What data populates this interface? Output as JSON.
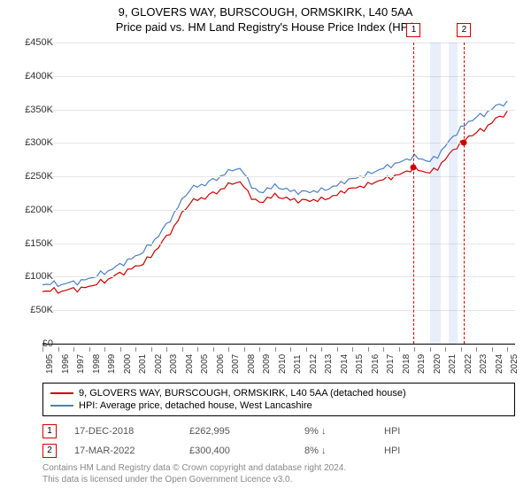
{
  "title": "9, GLOVERS WAY, BURSCOUGH, ORMSKIRK, L40 5AA",
  "subtitle": "Price paid vs. HM Land Registry's House Price Index (HPI)",
  "chart": {
    "type": "line",
    "x_start_year": 1995,
    "x_end_year": 2025.5,
    "years_ticks": [
      1995,
      1996,
      1997,
      1998,
      1999,
      2000,
      2001,
      2002,
      2003,
      2004,
      2005,
      2006,
      2007,
      2008,
      2009,
      2010,
      2011,
      2012,
      2013,
      2014,
      2015,
      2016,
      2017,
      2018,
      2019,
      2020,
      2021,
      2022,
      2023,
      2024,
      2025
    ],
    "ylim": [
      0,
      450000
    ],
    "ytick_step": 50000,
    "yticks": [
      "£0",
      "£50K",
      "£100K",
      "£150K",
      "£200K",
      "£250K",
      "£300K",
      "£350K",
      "£400K",
      "£450K"
    ],
    "background_color": "#ffffff",
    "grid_color": "#e6e6e6",
    "series": [
      {
        "name": "9, GLOVERS WAY, BURSCOUGH, ORMSKIRK, L40 5AA (detached house)",
        "color": "#cc0000",
        "width": 1.2,
        "points": [
          [
            1995.0,
            78000
          ],
          [
            1995.5,
            80000
          ],
          [
            1996.0,
            77000
          ],
          [
            1996.5,
            80000
          ],
          [
            1997.0,
            82000
          ],
          [
            1997.5,
            83000
          ],
          [
            1998.0,
            85000
          ],
          [
            1998.5,
            90000
          ],
          [
            1999.0,
            92000
          ],
          [
            1999.5,
            100000
          ],
          [
            2000.0,
            105000
          ],
          [
            2000.5,
            110000
          ],
          [
            2001.0,
            115000
          ],
          [
            2001.5,
            120000
          ],
          [
            2002.0,
            130000
          ],
          [
            2002.5,
            145000
          ],
          [
            2003.0,
            160000
          ],
          [
            2003.5,
            175000
          ],
          [
            2004.0,
            195000
          ],
          [
            2004.5,
            210000
          ],
          [
            2005.0,
            215000
          ],
          [
            2005.5,
            218000
          ],
          [
            2006.0,
            225000
          ],
          [
            2006.5,
            230000
          ],
          [
            2007.0,
            238000
          ],
          [
            2007.5,
            242000
          ],
          [
            2008.0,
            235000
          ],
          [
            2008.5,
            218000
          ],
          [
            2009.0,
            210000
          ],
          [
            2009.5,
            218000
          ],
          [
            2010.0,
            222000
          ],
          [
            2010.5,
            218000
          ],
          [
            2011.0,
            215000
          ],
          [
            2011.5,
            213000
          ],
          [
            2012.0,
            214000
          ],
          [
            2012.5,
            215000
          ],
          [
            2013.0,
            216000
          ],
          [
            2013.5,
            218000
          ],
          [
            2014.0,
            222000
          ],
          [
            2014.5,
            228000
          ],
          [
            2015.0,
            232000
          ],
          [
            2015.5,
            235000
          ],
          [
            2016.0,
            238000
          ],
          [
            2016.5,
            242000
          ],
          [
            2017.0,
            245000
          ],
          [
            2017.5,
            248000
          ],
          [
            2018.0,
            252000
          ],
          [
            2018.5,
            258000
          ],
          [
            2019.0,
            263000
          ],
          [
            2019.5,
            258000
          ],
          [
            2020.0,
            255000
          ],
          [
            2020.5,
            262000
          ],
          [
            2021.0,
            275000
          ],
          [
            2021.5,
            290000
          ],
          [
            2022.0,
            300000
          ],
          [
            2022.5,
            310000
          ],
          [
            2023.0,
            315000
          ],
          [
            2023.5,
            320000
          ],
          [
            2024.0,
            330000
          ],
          [
            2024.5,
            340000
          ],
          [
            2025.0,
            345000
          ]
        ]
      },
      {
        "name": "HPI: Average price, detached house, West Lancashire",
        "color": "#4a7fc3",
        "width": 1.2,
        "points": [
          [
            1995.0,
            88000
          ],
          [
            1995.5,
            90000
          ],
          [
            1996.0,
            87000
          ],
          [
            1996.5,
            90000
          ],
          [
            1997.0,
            92000
          ],
          [
            1997.5,
            94000
          ],
          [
            1998.0,
            97000
          ],
          [
            1998.5,
            102000
          ],
          [
            1999.0,
            105000
          ],
          [
            1999.5,
            112000
          ],
          [
            2000.0,
            118000
          ],
          [
            2000.5,
            125000
          ],
          [
            2001.0,
            130000
          ],
          [
            2001.5,
            138000
          ],
          [
            2002.0,
            148000
          ],
          [
            2002.5,
            162000
          ],
          [
            2003.0,
            178000
          ],
          [
            2003.5,
            195000
          ],
          [
            2004.0,
            215000
          ],
          [
            2004.5,
            230000
          ],
          [
            2005.0,
            235000
          ],
          [
            2005.5,
            238000
          ],
          [
            2006.0,
            245000
          ],
          [
            2006.5,
            250000
          ],
          [
            2007.0,
            258000
          ],
          [
            2007.5,
            262000
          ],
          [
            2008.0,
            255000
          ],
          [
            2008.5,
            235000
          ],
          [
            2009.0,
            225000
          ],
          [
            2009.5,
            232000
          ],
          [
            2010.0,
            236000
          ],
          [
            2010.5,
            232000
          ],
          [
            2011.0,
            228000
          ],
          [
            2011.5,
            226000
          ],
          [
            2012.0,
            227000
          ],
          [
            2012.5,
            228000
          ],
          [
            2013.0,
            230000
          ],
          [
            2013.5,
            232000
          ],
          [
            2014.0,
            236000
          ],
          [
            2014.5,
            242000
          ],
          [
            2015.0,
            246000
          ],
          [
            2015.5,
            250000
          ],
          [
            2016.0,
            254000
          ],
          [
            2016.5,
            258000
          ],
          [
            2017.0,
            262000
          ],
          [
            2017.5,
            266000
          ],
          [
            2018.0,
            270000
          ],
          [
            2018.5,
            276000
          ],
          [
            2019.0,
            280000
          ],
          [
            2019.5,
            276000
          ],
          [
            2020.0,
            272000
          ],
          [
            2020.5,
            280000
          ],
          [
            2021.0,
            295000
          ],
          [
            2021.5,
            310000
          ],
          [
            2022.0,
            322000
          ],
          [
            2022.5,
            332000
          ],
          [
            2023.0,
            338000
          ],
          [
            2023.5,
            342000
          ],
          [
            2024.0,
            350000
          ],
          [
            2024.5,
            358000
          ],
          [
            2025.0,
            360000
          ]
        ]
      }
    ],
    "vbands": [
      {
        "from": 2020.0,
        "to": 2020.7,
        "color": "rgba(100,150,220,0.15)"
      },
      {
        "from": 2021.2,
        "to": 2021.8,
        "color": "rgba(100,150,220,0.15)"
      }
    ],
    "markers": [
      {
        "label": "1",
        "x": 2018.96,
        "y": 262995,
        "badge_color": "#cc0000"
      },
      {
        "label": "2",
        "x": 2022.21,
        "y": 300400,
        "badge_color": "#cc0000"
      }
    ]
  },
  "legend": {
    "series": [
      {
        "color": "#cc0000",
        "label": "9, GLOVERS WAY, BURSCOUGH, ORMSKIRK, L40 5AA (detached house)"
      },
      {
        "color": "#4a7fc3",
        "label": "HPI: Average price, detached house, West Lancashire"
      }
    ]
  },
  "transactions": [
    {
      "badge": "1",
      "badge_color": "#cc0000",
      "date": "17-DEC-2018",
      "price": "£262,995",
      "pct": "9%",
      "arrow": "↓",
      "vs": "HPI"
    },
    {
      "badge": "2",
      "badge_color": "#cc0000",
      "date": "17-MAR-2022",
      "price": "£300,400",
      "pct": "8%",
      "arrow": "↓",
      "vs": "HPI"
    }
  ],
  "footer": {
    "line1": "Contains HM Land Registry data © Crown copyright and database right 2024.",
    "line2": "This data is licensed under the Open Government Licence v3.0."
  }
}
